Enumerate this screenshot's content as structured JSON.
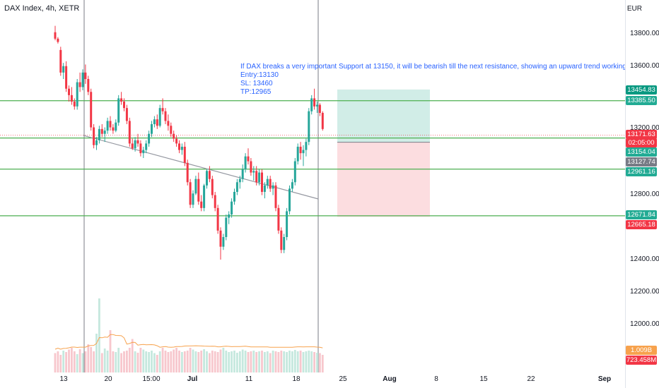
{
  "header": {
    "symbol_title": "DAX Index, 4h, XETR",
    "currency": "EUR"
  },
  "annotation": {
    "lines": [
      "If DAX breaks a very important Support at 13150, it will be bearish till the next resistance,  showing an upward trend working wit",
      "Entry:13130",
      "SL: 13460",
      "TP:12965"
    ]
  },
  "y_axis": {
    "ticks": [
      "13800.00",
      "13600.00",
      "13200.00",
      "12800.00",
      "12400.00",
      "12200.00",
      "12000.00"
    ]
  },
  "x_axis": {
    "ticks": [
      {
        "label": "13",
        "bold": false
      },
      {
        "label": "20",
        "bold": false
      },
      {
        "label": "15:00",
        "bold": false
      },
      {
        "label": "Jul",
        "bold": true
      },
      {
        "label": "11",
        "bold": false
      },
      {
        "label": "18",
        "bold": false
      },
      {
        "label": "25",
        "bold": false
      },
      {
        "label": "Aug",
        "bold": true
      },
      {
        "label": "8",
        "bold": false
      },
      {
        "label": "15",
        "bold": false
      },
      {
        "label": "22",
        "bold": false
      },
      {
        "label": "Sep",
        "bold": true
      }
    ]
  },
  "price_labels": [
    {
      "text": "13454.83",
      "color": "#089981"
    },
    {
      "text": "13385.50",
      "color": "#22ab94"
    },
    {
      "text": "13171.63",
      "color": "#f23645"
    },
    {
      "text": "02:05:00",
      "color": "#f23645"
    },
    {
      "text": "13154.04",
      "color": "#22ab94"
    },
    {
      "text": "13127.74",
      "color": "#787b86"
    },
    {
      "text": "12961.16",
      "color": "#22ab94"
    },
    {
      "text": "12671.84",
      "color": "#22ab94"
    },
    {
      "text": "12665.18",
      "color": "#f23645"
    },
    {
      "text": "1.009B",
      "color": "#f7a24d"
    },
    {
      "text": "723.458M",
      "color": "#f23645"
    }
  ],
  "horizontal_levels": [
    13385.5,
    13154.04,
    12961.16,
    12671.84
  ],
  "position_tool": {
    "target": 13454.83,
    "entry": 13127.74,
    "stop": 12665.18
  },
  "colors": {
    "up": "#26a69a",
    "down": "#f23645",
    "level_line": "#4caf50",
    "profit_zone": "#d1ede7",
    "loss_zone": "#fcdde0",
    "trendline": "#9598a1",
    "volume_up": "#c5e8de",
    "volume_down": "#f7c7cd",
    "volume_ma": "#f7a24d"
  },
  "candles": [
    [
      13810,
      13850,
      13760,
      13770
    ],
    [
      13770,
      13780,
      13740,
      13750
    ],
    [
      13700,
      13720,
      13540,
      13560
    ],
    [
      13560,
      13620,
      13520,
      13600
    ],
    [
      13600,
      13630,
      13440,
      13460
    ],
    [
      13460,
      13480,
      13380,
      13420
    ],
    [
      13420,
      13470,
      13360,
      13380
    ],
    [
      13380,
      13400,
      13330,
      13350
    ],
    [
      13350,
      13520,
      13330,
      13500
    ],
    [
      13500,
      13560,
      13440,
      13470
    ],
    [
      13470,
      13580,
      13450,
      13560
    ],
    [
      13560,
      13610,
      13490,
      13520
    ],
    [
      13520,
      13540,
      13420,
      13440
    ],
    [
      13440,
      13460,
      13200,
      13220
    ],
    [
      13220,
      13240,
      13090,
      13110
    ],
    [
      13110,
      13160,
      13080,
      13140
    ],
    [
      13140,
      13230,
      13120,
      13210
    ],
    [
      13210,
      13240,
      13160,
      13180
    ],
    [
      13180,
      13220,
      13130,
      13200
    ],
    [
      13200,
      13280,
      13180,
      13260
    ],
    [
      13260,
      13290,
      13200,
      13220
    ],
    [
      13220,
      13240,
      13180,
      13200
    ],
    [
      13200,
      13270,
      13190,
      13250
    ],
    [
      13250,
      13420,
      13230,
      13400
    ],
    [
      13400,
      13440,
      13360,
      13380
    ],
    [
      13380,
      13400,
      13320,
      13340
    ],
    [
      13340,
      13360,
      13240,
      13260
    ],
    [
      13260,
      13280,
      13100,
      13120
    ],
    [
      13120,
      13150,
      13080,
      13090
    ],
    [
      13090,
      13160,
      13070,
      13140
    ],
    [
      13140,
      13180,
      13100,
      13120
    ],
    [
      13120,
      13140,
      13040,
      13060
    ],
    [
      13060,
      13100,
      13030,
      13080
    ],
    [
      13080,
      13140,
      13060,
      13120
    ],
    [
      13120,
      13200,
      13100,
      13180
    ],
    [
      13180,
      13260,
      13160,
      13240
    ],
    [
      13240,
      13290,
      13220,
      13270
    ],
    [
      13270,
      13300,
      13210,
      13230
    ],
    [
      13230,
      13360,
      13220,
      13340
    ],
    [
      13340,
      13400,
      13300,
      13320
    ],
    [
      13320,
      13340,
      13240,
      13260
    ],
    [
      13260,
      13300,
      13200,
      13230
    ],
    [
      13230,
      13250,
      13160,
      13180
    ],
    [
      13180,
      13200,
      13130,
      13150
    ],
    [
      13150,
      13170,
      13100,
      13120
    ],
    [
      13120,
      13140,
      13060,
      13080
    ],
    [
      13080,
      13120,
      13050,
      13100
    ],
    [
      13100,
      13130,
      12980,
      13000
    ],
    [
      13000,
      13020,
      12860,
      12880
    ],
    [
      12880,
      12900,
      12720,
      12740
    ],
    [
      12740,
      12830,
      12720,
      12810
    ],
    [
      12810,
      12920,
      12800,
      12900
    ],
    [
      12900,
      12940,
      12740,
      12760
    ],
    [
      12760,
      12800,
      12700,
      12720
    ],
    [
      12720,
      12870,
      12700,
      12860
    ],
    [
      12860,
      12960,
      12840,
      12950
    ],
    [
      12950,
      12980,
      12880,
      12900
    ],
    [
      12900,
      12920,
      12780,
      12800
    ],
    [
      12800,
      12820,
      12700,
      12720
    ],
    [
      12720,
      12740,
      12560,
      12580
    ],
    [
      12580,
      12600,
      12400,
      12480
    ],
    [
      12480,
      12560,
      12460,
      12540
    ],
    [
      12540,
      12680,
      12520,
      12660
    ],
    [
      12660,
      12700,
      12620,
      12680
    ],
    [
      12680,
      12780,
      12660,
      12760
    ],
    [
      12760,
      12840,
      12740,
      12820
    ],
    [
      12820,
      12900,
      12800,
      12880
    ],
    [
      12880,
      12920,
      12840,
      12900
    ],
    [
      12900,
      12990,
      12880,
      12960
    ],
    [
      12960,
      13060,
      12940,
      13040
    ],
    [
      13040,
      13090,
      12990,
      13010
    ],
    [
      13010,
      13030,
      12920,
      12940
    ],
    [
      12940,
      12980,
      12890,
      12950
    ],
    [
      12950,
      12980,
      12860,
      12880
    ],
    [
      12880,
      12960,
      12860,
      12940
    ],
    [
      12940,
      12960,
      12800,
      12820
    ],
    [
      12820,
      12880,
      12780,
      12860
    ],
    [
      12860,
      12920,
      12840,
      12900
    ],
    [
      12900,
      12920,
      12820,
      12840
    ],
    [
      12840,
      12880,
      12800,
      12860
    ],
    [
      12860,
      12880,
      12700,
      12720
    ],
    [
      12720,
      12740,
      12560,
      12580
    ],
    [
      12580,
      12600,
      12440,
      12460
    ],
    [
      12460,
      12560,
      12440,
      12540
    ],
    [
      12540,
      12720,
      12520,
      12700
    ],
    [
      12700,
      12860,
      12680,
      12840
    ],
    [
      12840,
      12900,
      12820,
      12880
    ],
    [
      12880,
      13030,
      12860,
      13010
    ],
    [
      13010,
      13120,
      12990,
      13100
    ],
    [
      13100,
      13130,
      13020,
      13060
    ],
    [
      13060,
      13110,
      12980,
      13080
    ],
    [
      13080,
      13150,
      13040,
      13130
    ],
    [
      13130,
      13340,
      13110,
      13320
    ],
    [
      13320,
      13420,
      13300,
      13400
    ],
    [
      13400,
      13460,
      13330,
      13350
    ],
    [
      13350,
      13380,
      13310,
      13360
    ],
    [
      13360,
      13370,
      13290,
      13310
    ],
    [
      13310,
      13320,
      13200,
      13210
    ]
  ],
  "volumes": [
    0.55,
    0.6,
    0.5,
    0.62,
    0.58,
    0.65,
    0.7,
    0.6,
    0.52,
    0.66,
    0.55,
    0.6,
    0.8,
    0.72,
    0.6,
    1.1,
    2.1,
    0.55,
    0.68,
    0.62,
    1.2,
    0.6,
    0.58,
    0.7,
    0.55,
    0.6,
    0.62,
    0.7,
    0.95,
    0.6,
    0.56,
    0.7,
    0.65,
    0.6,
    0.58,
    0.62,
    0.55,
    0.5,
    0.6,
    0.7,
    0.62,
    0.58,
    0.6,
    0.65,
    0.7,
    0.62,
    0.58,
    0.6,
    0.62,
    0.7,
    0.65,
    0.6,
    0.58,
    0.62,
    0.66,
    0.6,
    0.55,
    0.62,
    0.6,
    0.58,
    0.65,
    0.7,
    0.62,
    0.58,
    0.6,
    0.62,
    0.56,
    0.6,
    0.65,
    0.62,
    0.58,
    0.6,
    0.62,
    0.58,
    0.6,
    0.62,
    0.58,
    0.6,
    0.55,
    0.62,
    0.6,
    0.58,
    0.62,
    0.6,
    0.58,
    0.62,
    0.6,
    0.64,
    0.6,
    0.62,
    0.58,
    0.6,
    0.62,
    0.6,
    0.58,
    0.56,
    0.55,
    0.5
  ]
}
